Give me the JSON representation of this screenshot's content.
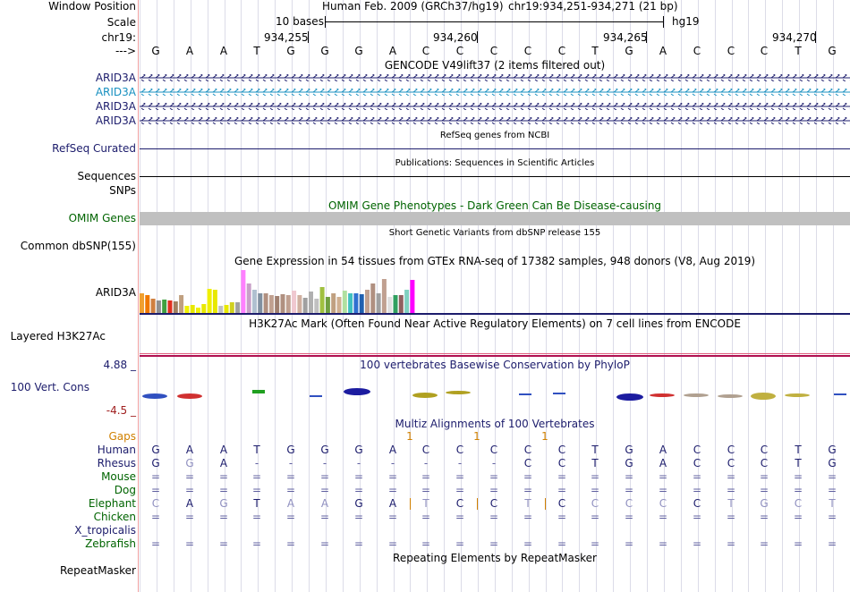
{
  "left_labels": {
    "window_position": "Window Position",
    "scale": "Scale",
    "chr": "chr19:",
    "arrow": "--->",
    "arid3a_1": "ARID3A",
    "arid3a_2": "ARID3A",
    "arid3a_3": "ARID3A",
    "arid3a_4": "ARID3A",
    "refseq": "RefSeq Curated",
    "sequences": "Sequences",
    "snps": "SNPs",
    "omim": "OMIM Genes",
    "common_dbsnp": "Common dbSNP(155)",
    "gtex_gene": "ARID3A",
    "h3k27ac": "Layered H3K27Ac",
    "cons_max": "4.88 _",
    "cons_label": "100 Vert. Cons",
    "cons_min": "-4.5 _",
    "gaps": "Gaps",
    "species": [
      "Human",
      "Rhesus",
      "Mouse",
      "Dog",
      "Elephant",
      "Chicken",
      "X_tropicalis",
      "Zebrafish"
    ],
    "repeatmasker": "RepeatMasker"
  },
  "header": {
    "assembly": "Human Feb. 2009 (GRCh37/hg19)",
    "position": "chr19:934,251-934,271 (21 bp)",
    "scale_bases": "10 bases",
    "db": "hg19",
    "ticks": [
      "934,255",
      "934,260",
      "934,265",
      "934,270"
    ]
  },
  "bases": [
    "G",
    "A",
    "A",
    "T",
    "G",
    "G",
    "G",
    "A",
    "C",
    "C",
    "C",
    "C",
    "C",
    "T",
    "G",
    "A",
    "C",
    "C",
    "C",
    "T",
    "G"
  ],
  "tracks": {
    "gencode": "GENCODE V49lift37 (2 items filtered out)",
    "refseq": "RefSeq genes from NCBI",
    "publications": "Publications: Sequences in Scientific Articles",
    "omim": "OMIM Gene Phenotypes - Dark Green Can Be Disease-causing",
    "dbsnp": "Short Genetic Variants from dbSNP release 155",
    "gtex": "Gene Expression in 54 tissues from GTEx RNA-seq of 17382 samples, 948 donors (V8, Aug 2019)",
    "h3k27ac": "H3K27Ac Mark (Often Found Near Active Regulatory Elements) on 7 cell lines from ENCODE",
    "phylop": "100 vertebrates Basewise Conservation by PhyloP",
    "multiz": "Multiz Alignments of 100 Vertebrates",
    "repeatmasker": "Repeating Elements by RepeatMasker"
  },
  "gaps_marks": [
    "1",
    "1",
    "1"
  ],
  "alignment": {
    "Human": [
      "G",
      "A",
      "A",
      "T",
      "G",
      "G",
      "G",
      "A",
      "C",
      "C",
      "C",
      "C",
      "C",
      "T",
      "G",
      "A",
      "C",
      "C",
      "C",
      "T",
      "G"
    ],
    "Rhesus": [
      "G",
      "G",
      "A",
      "-",
      "-",
      "-",
      "-",
      "-",
      "-",
      "-",
      "-",
      "C",
      "C",
      "T",
      "G",
      "A",
      "C",
      "C",
      "C",
      "T",
      "G"
    ],
    "Mouse": [
      "=",
      "=",
      "=",
      "=",
      "=",
      "=",
      "=",
      "=",
      "=",
      "=",
      "=",
      "=",
      "=",
      "=",
      "=",
      "=",
      "=",
      "=",
      "=",
      "=",
      "="
    ],
    "Dog": [
      "=",
      "=",
      "=",
      "=",
      "=",
      "=",
      "=",
      "=",
      "=",
      "=",
      "=",
      "=",
      "=",
      "=",
      "=",
      "=",
      "=",
      "=",
      "=",
      "=",
      "="
    ],
    "Elephant": [
      "C",
      "A",
      "G",
      "T",
      "A",
      "A",
      "G",
      "A",
      "T",
      "C",
      "C",
      "T",
      "C",
      "C",
      "C",
      "C",
      "C",
      "T",
      "G",
      "C",
      "T"
    ],
    "Chicken": [
      "=",
      "=",
      "=",
      "=",
      "=",
      "=",
      "=",
      "=",
      "=",
      "=",
      "=",
      "=",
      "=",
      "=",
      "=",
      "=",
      "=",
      "=",
      "=",
      "=",
      "="
    ],
    "X_tropicalis": [],
    "Zebrafish": [
      "=",
      "=",
      "=",
      "=",
      "=",
      "=",
      "=",
      "=",
      "=",
      "=",
      "=",
      "=",
      "=",
      "=",
      "=",
      "=",
      "=",
      "=",
      "=",
      "=",
      "="
    ]
  },
  "gtex_bars": [
    {
      "color": "#f0a030",
      "v": 22
    },
    {
      "color": "#f07800",
      "v": 20
    },
    {
      "color": "#d08040",
      "v": 16
    },
    {
      "color": "#909090",
      "v": 14
    },
    {
      "color": "#40a040",
      "v": 15
    },
    {
      "color": "#e03020",
      "v": 14
    },
    {
      "color": "#a08060",
      "v": 13
    },
    {
      "color": "#c0a080",
      "v": 20
    },
    {
      "color": "#f0f000",
      "v": 8
    },
    {
      "color": "#e8e800",
      "v": 9
    },
    {
      "color": "#f0f000",
      "v": 6
    },
    {
      "color": "#e8e800",
      "v": 10
    },
    {
      "color": "#f0f000",
      "v": 27
    },
    {
      "color": "#e8e800",
      "v": 26
    },
    {
      "color": "#c0c0c0",
      "v": 8
    },
    {
      "color": "#e8e800",
      "v": 9
    },
    {
      "color": "#d0d020",
      "v": 12
    },
    {
      "color": "#a0a0a0",
      "v": 12
    },
    {
      "color": "#ff80ff",
      "v": 48
    },
    {
      "color": "#c8a0c8",
      "v": 33
    },
    {
      "color": "#b0c0d0",
      "v": 26
    },
    {
      "color": "#8090a0",
      "v": 22
    },
    {
      "color": "#b09080",
      "v": 22
    },
    {
      "color": "#c0a090",
      "v": 20
    },
    {
      "color": "#a08070",
      "v": 19
    },
    {
      "color": "#b09080",
      "v": 21
    },
    {
      "color": "#c0a090",
      "v": 20
    },
    {
      "color": "#f0c8d0",
      "v": 25
    },
    {
      "color": "#d0b0a0",
      "v": 20
    },
    {
      "color": "#a0a0a0",
      "v": 17
    },
    {
      "color": "#b0b0b0",
      "v": 24
    },
    {
      "color": "#c0c0c0",
      "v": 16
    },
    {
      "color": "#a0c040",
      "v": 29
    },
    {
      "color": "#70a040",
      "v": 18
    },
    {
      "color": "#c0a080",
      "v": 22
    },
    {
      "color": "#d0b090",
      "v": 18
    },
    {
      "color": "#b0e0a0",
      "v": 25
    },
    {
      "color": "#40c0c0",
      "v": 22
    },
    {
      "color": "#3070d0",
      "v": 22
    },
    {
      "color": "#2060b0",
      "v": 21
    },
    {
      "color": "#c0a090",
      "v": 26
    },
    {
      "color": "#b09080",
      "v": 33
    },
    {
      "color": "#a0a0a0",
      "v": 22
    },
    {
      "color": "#c0a090",
      "v": 38
    },
    {
      "color": "#e0e0e0",
      "v": 18
    },
    {
      "color": "#30a060",
      "v": 20
    },
    {
      "color": "#906060",
      "v": 20
    },
    {
      "color": "#80d0c0",
      "v": 26
    },
    {
      "color": "#ff00ff",
      "v": 37
    }
  ],
  "colors": {
    "navy": "#1c1c6c",
    "arid_highlight": "#1890c0",
    "omim_green": "#006400",
    "gaps_orange": "#d08000",
    "species_green": "#006400",
    "species_navy": "#1c1c6c",
    "divider": "#f0a0a0",
    "h3k27ac_line": "#e06080"
  }
}
